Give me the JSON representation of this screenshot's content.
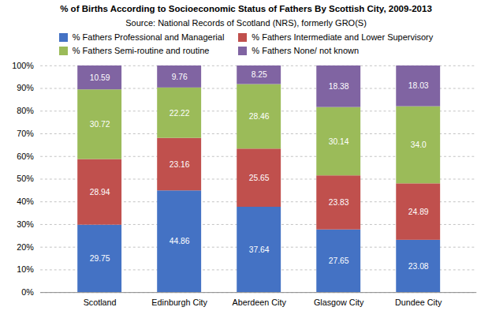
{
  "chart_data": {
    "type": "bar",
    "title": "% of Births According to Socioeconomic Status of Fathers By Scottish City, 2009-2013",
    "subtitle": "Source: National Records of Scotland (NRS), formerly GRO(S)",
    "categories": [
      "Scotland",
      "Edinburgh City",
      "Aberdeen City",
      "Glasgow City",
      "Dundee City"
    ],
    "series": [
      {
        "name": "% Fathers Professional and Managerial",
        "color": "#4472C4",
        "values": [
          29.75,
          44.86,
          37.64,
          27.65,
          23.08
        ]
      },
      {
        "name": "% Fathers Intermediate and Lower Supervisory",
        "color": "#C0504D",
        "values": [
          28.94,
          23.16,
          25.65,
          23.83,
          24.89
        ]
      },
      {
        "name": "% Fathers Semi-routine and routine",
        "color": "#9BBB59",
        "values": [
          30.72,
          22.22,
          28.46,
          30.14,
          34.0
        ],
        "value_labels": [
          "30.72",
          "22.22",
          "28.46",
          "30.14",
          "34.0"
        ]
      },
      {
        "name": "% Fathers None/ not known",
        "color": "#8064A2",
        "values": [
          10.59,
          9.76,
          8.25,
          18.38,
          18.03
        ]
      }
    ],
    "stacked": true,
    "data_labels": true,
    "ylim": [
      0,
      100
    ],
    "yticks": [
      {
        "value": 0,
        "label": "0%"
      },
      {
        "value": 10,
        "label": "10%"
      },
      {
        "value": 20,
        "label": "20%"
      },
      {
        "value": 30,
        "label": "30%"
      },
      {
        "value": 40,
        "label": "40%"
      },
      {
        "value": 50,
        "label": "50%"
      },
      {
        "value": 60,
        "label": "60%"
      },
      {
        "value": 70,
        "label": "70%"
      },
      {
        "value": 80,
        "label": "80%"
      },
      {
        "value": 90,
        "label": "90%"
      },
      {
        "value": 100,
        "label": "100%"
      }
    ],
    "grid": true,
    "legend": "top"
  }
}
